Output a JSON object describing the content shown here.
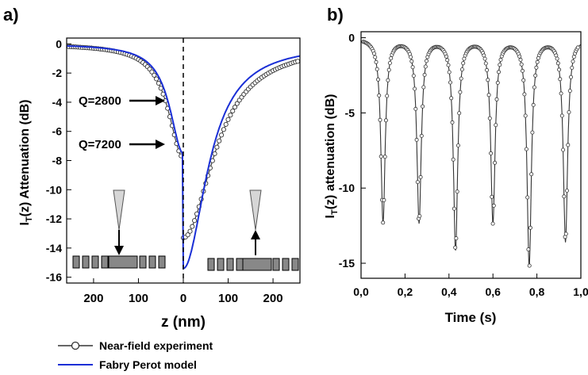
{
  "chart_data": [
    {
      "panel_label": "a)",
      "type": "line",
      "xlabel": "z (nm)",
      "ylabel_main": "I",
      "ylabel_sub": "T",
      "ylabel_rest": "(z) Attenuation (dB)",
      "xlim": [
        -260,
        260
      ],
      "ylim": [
        -16.4,
        0.4
      ],
      "x_direction": "mirrored-about-zero",
      "xticks": [
        -200,
        -100,
        0,
        100,
        200
      ],
      "xtick_labels": [
        "200",
        "100",
        "0",
        "100",
        "200"
      ],
      "yticks": [
        0,
        -2,
        -4,
        -6,
        -8,
        -10,
        -12,
        -14,
        -16
      ],
      "ytick_labels": [
        "0",
        "-2",
        "-4",
        "-6",
        "-8",
        "-10",
        "-12",
        "-14",
        "-16"
      ],
      "grid": false,
      "series": [
        {
          "name": "Near-field experiment",
          "style": "open-circles-line",
          "color": "#333333",
          "curves": [
            {
              "depth": -7.8,
              "width": 40
            },
            {
              "depth": -13.3,
              "width": 80
            }
          ]
        },
        {
          "name": "Fabry Perot model",
          "style": "line",
          "color": "#1a2fd6",
          "curves": [
            {
              "depth": -7.5,
              "width": 36
            },
            {
              "depth": -15.4,
              "width": 62
            }
          ]
        }
      ],
      "annotations": [
        {
          "text": "Q=2800",
          "target": [
            -30,
            -4.8
          ]
        },
        {
          "text": "Q=7200",
          "target": [
            -30,
            -7.5
          ]
        }
      ],
      "legend": {
        "placement": "bottom",
        "entries": [
          {
            "label": "Near-field experiment",
            "marker": "circle"
          },
          {
            "label": "Fabry Perot model",
            "marker": "line"
          }
        ]
      }
    },
    {
      "panel_label": "b)",
      "type": "line",
      "xlabel": "Time (s)",
      "ylabel_main": "I",
      "ylabel_sub": "T",
      "ylabel_rest": "(z) attenuation (dB)",
      "xlim": [
        0,
        1.0
      ],
      "ylim": [
        -16,
        0.4
      ],
      "xticks": [
        0,
        0.2,
        0.4,
        0.6,
        0.8,
        1.0
      ],
      "xtick_labels": [
        "0,0",
        "0,2",
        "0,4",
        "0,6",
        "0,8",
        "1,0"
      ],
      "yticks": [
        0,
        -5,
        -10,
        -15
      ],
      "ytick_labels": [
        "0",
        "-5",
        "-10",
        "-15"
      ],
      "grid": false,
      "series": [
        {
          "style": "open-circles-line",
          "color": "#333333",
          "dips": [
            {
              "t": 0.1,
              "depth": -12.2
            },
            {
              "t": 0.264,
              "depth": -12.2
            },
            {
              "t": 0.43,
              "depth": -14.0
            },
            {
              "t": 0.6,
              "depth": -12.2
            },
            {
              "t": 0.765,
              "depth": -15.1
            },
            {
              "t": 0.93,
              "depth": -13.5
            }
          ]
        }
      ]
    }
  ]
}
